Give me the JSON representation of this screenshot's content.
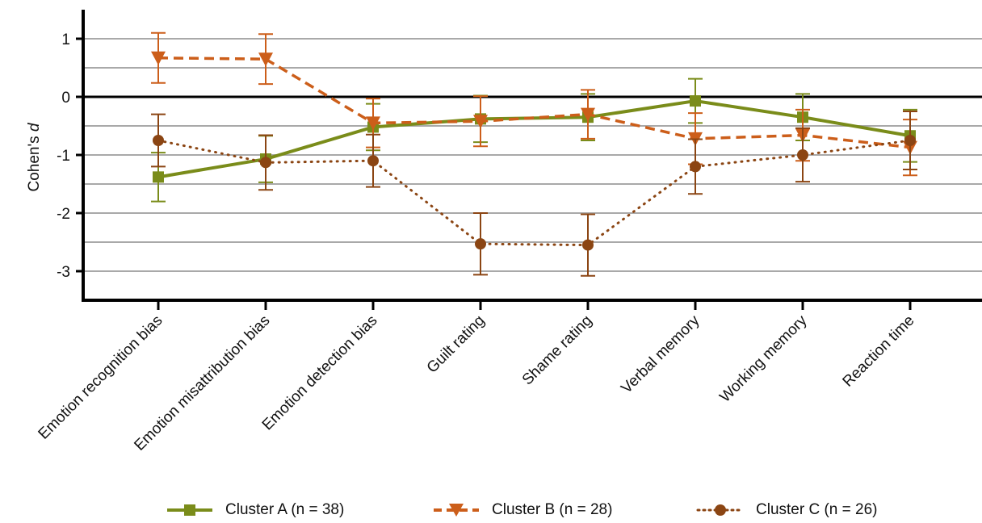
{
  "chart_data": {
    "type": "line",
    "ylabel": "Cohen's",
    "ylabel_italic": "d",
    "ylim": [
      -3.5,
      1.5
    ],
    "yticks": [
      1,
      0,
      -1,
      -2,
      -3
    ],
    "ytick_labels": [
      "1",
      "0",
      "-1",
      "-2",
      "-3"
    ],
    "grid": true,
    "grid_step": 0.5,
    "categories": [
      "Emotion recognition bias",
      "Emotion misattribution bias",
      "Emotion detection bias",
      "Guilt rating",
      "Shame rating",
      "Verbal memory",
      "Working memory",
      "Reaction time"
    ],
    "legend_position": "bottom",
    "series": [
      {
        "name": "Cluster A (n = 38)",
        "color": "#7a8c1a",
        "line_style": "solid",
        "marker": "square",
        "values": [
          -1.38,
          -1.07,
          -0.52,
          -0.38,
          -0.35,
          -0.07,
          -0.35,
          -0.67
        ],
        "error": [
          0.42,
          0.4,
          0.4,
          0.4,
          0.4,
          0.38,
          0.4,
          0.45
        ]
      },
      {
        "name": "Cluster B (n = 28)",
        "color": "#cc5e1a",
        "line_style": "dashed",
        "marker": "triangle-down",
        "values": [
          0.67,
          0.65,
          -0.45,
          -0.42,
          -0.3,
          -0.72,
          -0.66,
          -0.87
        ],
        "error": [
          0.43,
          0.43,
          0.42,
          0.43,
          0.42,
          0.44,
          0.44,
          0.48
        ]
      },
      {
        "name": "Cluster C (n = 26)",
        "color": "#8b4513",
        "line_style": "dotted",
        "marker": "circle",
        "values": [
          -0.75,
          -1.13,
          -1.1,
          -2.53,
          -2.55,
          -1.2,
          -1.0,
          -0.75
        ],
        "error": [
          0.45,
          0.47,
          0.45,
          0.53,
          0.53,
          0.47,
          0.46,
          0.5
        ]
      }
    ]
  }
}
